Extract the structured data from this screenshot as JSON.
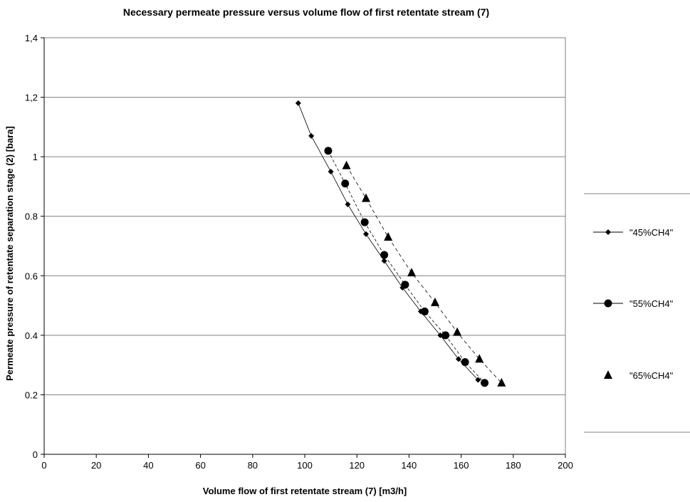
{
  "chart_data": {
    "type": "scatter",
    "title": "Necessary permeate pressure versus volume flow of first retentate stream (7)",
    "xlabel": "Volume flow of first retentate stream (7) [m3/h]",
    "ylabel": "Permeate pressure of retentate separation stage (2) [bara]",
    "xlim": [
      0,
      200
    ],
    "ylim": [
      0,
      1.4
    ],
    "x_ticks": [
      0,
      20,
      40,
      60,
      80,
      100,
      120,
      140,
      160,
      180,
      200
    ],
    "x_tick_labels": [
      "0",
      "20",
      "40",
      "60",
      "80",
      "100",
      "120",
      "140",
      "160",
      "180",
      "200"
    ],
    "y_ticks": [
      0,
      0.2,
      0.4,
      0.6,
      0.8,
      1,
      1.2,
      1.4
    ],
    "y_tick_labels": [
      "0",
      "0.2",
      "0.4",
      "0.6",
      "0.8",
      "1",
      "1,2",
      "1,4"
    ],
    "grid": "horizontal",
    "legend_position": "right",
    "series": [
      {
        "name": "\"45%CH4\"",
        "marker": "diamond",
        "color": "#000000",
        "points": [
          {
            "x": 97.5,
            "y": 1.18
          },
          {
            "x": 102.5,
            "y": 1.07
          },
          {
            "x": 110,
            "y": 0.95
          },
          {
            "x": 116.5,
            "y": 0.84
          },
          {
            "x": 123.5,
            "y": 0.74
          },
          {
            "x": 130.5,
            "y": 0.65
          },
          {
            "x": 137.5,
            "y": 0.56
          },
          {
            "x": 144.5,
            "y": 0.48
          },
          {
            "x": 152,
            "y": 0.4
          },
          {
            "x": 159,
            "y": 0.32
          },
          {
            "x": 166.5,
            "y": 0.25
          }
        ]
      },
      {
        "name": "\"55%CH4\"",
        "marker": "circle",
        "color": "#000000",
        "points": [
          {
            "x": 109,
            "y": 1.02
          },
          {
            "x": 115.5,
            "y": 0.91
          },
          {
            "x": 123,
            "y": 0.78
          },
          {
            "x": 130.5,
            "y": 0.67
          },
          {
            "x": 138.5,
            "y": 0.57
          },
          {
            "x": 146,
            "y": 0.48
          },
          {
            "x": 154,
            "y": 0.4
          },
          {
            "x": 161.5,
            "y": 0.31
          },
          {
            "x": 169,
            "y": 0.24
          }
        ]
      },
      {
        "name": "\"65%CH4\"",
        "marker": "triangle",
        "color": "#000000",
        "points": [
          {
            "x": 116,
            "y": 0.97
          },
          {
            "x": 123.5,
            "y": 0.86
          },
          {
            "x": 132,
            "y": 0.73
          },
          {
            "x": 141,
            "y": 0.61
          },
          {
            "x": 150,
            "y": 0.51
          },
          {
            "x": 158.5,
            "y": 0.41
          },
          {
            "x": 167,
            "y": 0.32
          },
          {
            "x": 175.5,
            "y": 0.24
          }
        ]
      }
    ]
  }
}
